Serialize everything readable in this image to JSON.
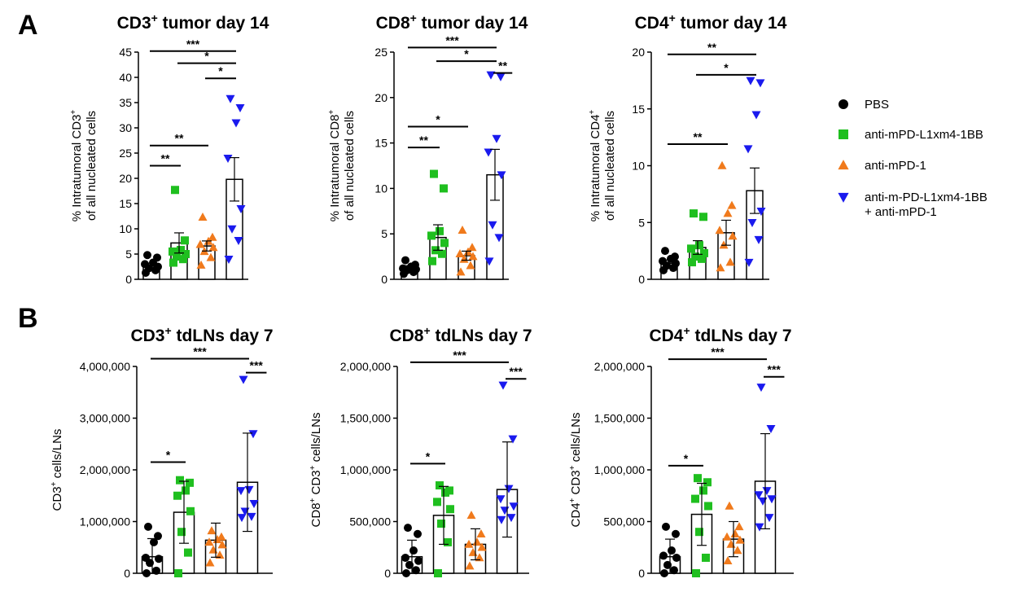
{
  "panel_letters": [
    "A",
    "B"
  ],
  "legend": [
    {
      "label_lines": [
        "PBS"
      ],
      "marker": "circle",
      "color": "#000000"
    },
    {
      "label_lines": [
        "anti-mPD-L1xm4-1BB"
      ],
      "marker": "square",
      "color": "#1fbf1f"
    },
    {
      "label_lines": [
        "anti-mPD-1"
      ],
      "marker": "triangle-up",
      "color": "#f07a1c"
    },
    {
      "label_lines": [
        "anti-m-PD-L1xm4-1BB",
        "+ anti-mPD-1"
      ],
      "marker": "triangle-down",
      "color": "#1a1aee"
    }
  ],
  "chart_data": [
    {
      "type": "bar",
      "id": "a1",
      "title_pre": "CD3",
      "title_sup": "+",
      "title_post": " tumor day 14",
      "ylabel_lines": [
        {
          "pre": "% Intratumoral CD3",
          "sup": "+",
          "post": ""
        },
        {
          "pre": "of all nucleated cells",
          "sup": "",
          "post": ""
        }
      ],
      "ylim": [
        0,
        45
      ],
      "yticks": [
        0,
        5,
        10,
        15,
        20,
        25,
        30,
        35,
        40,
        45
      ],
      "ytick_labels": [
        "0",
        "5",
        "10",
        "15",
        "20",
        "25",
        "30",
        "35",
        "40",
        "45"
      ],
      "categories": [
        "PBS",
        "anti-mPD-L1xm4-1BB",
        "anti-mPD-1",
        "anti-m-PD-L1xm4-1BB + anti-mPD-1"
      ],
      "means": [
        2.6,
        7.2,
        6.6,
        19.8
      ],
      "errors": [
        0.6,
        2.0,
        1.0,
        4.3
      ],
      "points": [
        [
          1.3,
          1.8,
          2.2,
          2.5,
          3.0,
          3.3,
          4.3,
          4.8
        ],
        [
          3.3,
          4.0,
          4.5,
          5.0,
          5.5,
          5.8,
          7.7,
          17.7
        ],
        [
          2.8,
          4.3,
          5.5,
          6.3,
          6.9,
          7.5,
          8.3,
          12.3
        ],
        [
          4.0,
          7.7,
          10.0,
          14.0,
          24.0,
          31.0,
          34.0,
          35.8
        ]
      ],
      "significance": [
        {
          "from": 0,
          "to": 1,
          "label": "**",
          "y": 22.5
        },
        {
          "from": 0,
          "to": 2,
          "label": "**",
          "y": 26.5
        },
        {
          "from": 2,
          "to": 3,
          "label": "*",
          "y": 39.8
        },
        {
          "from": 1,
          "to": 3,
          "label": "*",
          "y": 42.8
        },
        {
          "from": 0,
          "to": 3,
          "label": "***",
          "y": 45.2
        }
      ]
    },
    {
      "type": "bar",
      "id": "a2",
      "title_pre": "CD8",
      "title_sup": "+",
      "title_post": " tumor day 14",
      "ylabel_lines": [
        {
          "pre": "% Intratumoral CD8",
          "sup": "+",
          "post": ""
        },
        {
          "pre": "of all nucleated cells",
          "sup": "",
          "post": ""
        }
      ],
      "ylim": [
        0,
        25
      ],
      "yticks": [
        0,
        5,
        10,
        15,
        20,
        25
      ],
      "ytick_labels": [
        "0",
        "5",
        "10",
        "15",
        "20",
        "25"
      ],
      "categories": [
        "PBS",
        "anti-mPD-L1xm4-1BB",
        "anti-mPD-1",
        "anti-m-PD-L1xm4-1BB + anti-mPD-1"
      ],
      "means": [
        1.2,
        4.6,
        2.6,
        11.5
      ],
      "errors": [
        0.3,
        1.4,
        0.5,
        2.8
      ],
      "points": [
        [
          0.6,
          0.8,
          1.0,
          1.1,
          1.2,
          1.4,
          1.6,
          2.1
        ],
        [
          2.0,
          2.8,
          3.2,
          4.0,
          4.8,
          5.3,
          10.0,
          11.6
        ],
        [
          0.8,
          1.5,
          2.2,
          2.5,
          2.8,
          3.0,
          3.5,
          5.4
        ],
        [
          2.0,
          4.6,
          6.0,
          11.5,
          14.0,
          15.5,
          22.3,
          22.5
        ]
      ],
      "significance": [
        {
          "from": 0,
          "to": 1,
          "label": "**",
          "y": 14.5
        },
        {
          "from": 0,
          "to": 2,
          "label": "*",
          "y": 16.8
        },
        {
          "from": 3,
          "to": 3.55,
          "label": "**",
          "y": 22.7
        },
        {
          "from": 1,
          "to": 3,
          "label": "*",
          "y": 24.0
        },
        {
          "from": 0,
          "to": 3,
          "label": "***",
          "y": 25.5
        }
      ]
    },
    {
      "type": "bar",
      "id": "a3",
      "title_pre": "CD4",
      "title_sup": "+",
      "title_post": " tumor day 14",
      "ylabel_lines": [
        {
          "pre": "% Intratumoral CD4",
          "sup": "+",
          "post": ""
        },
        {
          "pre": "of all nucleated cells",
          "sup": "",
          "post": ""
        }
      ],
      "ylim": [
        0,
        20
      ],
      "yticks": [
        0,
        5,
        10,
        15,
        20
      ],
      "ytick_labels": [
        "0",
        "5",
        "10",
        "15",
        "20"
      ],
      "categories": [
        "PBS",
        "anti-mPD-L1xm4-1BB",
        "anti-mPD-1",
        "anti-m-PD-L1xm4-1BB + anti-mPD-1"
      ],
      "means": [
        1.4,
        2.8,
        4.1,
        7.8
      ],
      "errors": [
        0.3,
        0.6,
        1.1,
        2.0
      ],
      "points": [
        [
          0.8,
          1.0,
          1.2,
          1.4,
          1.6,
          1.8,
          2.0,
          2.5
        ],
        [
          1.5,
          1.8,
          2.0,
          2.3,
          2.7,
          3.0,
          5.5,
          5.8
        ],
        [
          1.0,
          1.5,
          3.0,
          3.8,
          4.3,
          5.8,
          6.5,
          10.0
        ],
        [
          1.5,
          3.5,
          5.0,
          6.0,
          11.5,
          14.5,
          17.3,
          17.5
        ]
      ],
      "significance": [
        {
          "from": 0,
          "to": 2,
          "label": "**",
          "y": 11.9
        },
        {
          "from": 1,
          "to": 3,
          "label": "*",
          "y": 18.0
        },
        {
          "from": 0,
          "to": 3,
          "label": "**",
          "y": 19.8
        }
      ]
    },
    {
      "type": "bar",
      "id": "b1",
      "title_pre": "CD3",
      "title_sup": "+",
      "title_post": " tdLNs day 7",
      "ylabel_lines": [
        {
          "pre": "CD3",
          "sup": "+",
          "post": " cells/LNs"
        }
      ],
      "ylim": [
        0,
        4000000
      ],
      "yticks": [
        0,
        1000000,
        2000000,
        3000000,
        4000000
      ],
      "ytick_labels": [
        "0",
        "1,000,000",
        "2,000,000",
        "3,000,000",
        "4,000,000"
      ],
      "categories": [
        "PBS",
        "anti-mPD-L1xm4-1BB",
        "anti-mPD-1",
        "anti-m-PD-L1xm4-1BB + anti-mPD-1"
      ],
      "means": [
        320000,
        1180000,
        640000,
        1760000
      ],
      "errors": [
        350000,
        600000,
        330000,
        950000
      ],
      "points": [
        [
          0,
          50000,
          200000,
          280000,
          300000,
          600000,
          720000,
          900000
        ],
        [
          0,
          400000,
          800000,
          1200000,
          1500000,
          1600000,
          1750000,
          1800000
        ],
        [
          200000,
          350000,
          450000,
          550000,
          600000,
          650000,
          700000,
          820000
        ],
        [
          1080000,
          1100000,
          1200000,
          1350000,
          1600000,
          1620000,
          2700000,
          3750000
        ]
      ],
      "significance": [
        {
          "from": 0,
          "to": 1,
          "label": "*",
          "y": 2150000
        },
        {
          "from": 3,
          "to": 3.55,
          "label": "***",
          "y": 3880000
        },
        {
          "from": 0,
          "to": 3,
          "label": "***",
          "y": 4150000
        }
      ]
    },
    {
      "type": "bar",
      "id": "b2",
      "title_pre": "CD8",
      "title_sup": "+",
      "title_post": " tdLNs day 7",
      "ylabel_lines": [
        {
          "pre": "CD8",
          "sup": "+",
          "post": " CD3",
          "sup2": "+",
          "post2": " cells/LNs"
        }
      ],
      "ylim": [
        0,
        2000000
      ],
      "yticks": [
        0,
        500000,
        1000000,
        1500000,
        2000000
      ],
      "ytick_labels": [
        "0",
        "500,000",
        "1,000,000",
        "1,500,000",
        "2,000,000"
      ],
      "categories": [
        "PBS",
        "anti-mPD-L1xm4-1BB",
        "anti-mPD-1",
        "anti-m-PD-L1xm4-1BB + anti-mPD-1"
      ],
      "means": [
        160000,
        560000,
        280000,
        810000
      ],
      "errors": [
        160000,
        280000,
        150000,
        460000
      ],
      "points": [
        [
          0,
          30000,
          80000,
          120000,
          150000,
          220000,
          380000,
          440000
        ],
        [
          0,
          300000,
          480000,
          620000,
          690000,
          780000,
          800000,
          850000
        ],
        [
          70000,
          150000,
          200000,
          250000,
          280000,
          300000,
          380000,
          560000
        ],
        [
          520000,
          540000,
          610000,
          650000,
          720000,
          820000,
          1300000,
          1820000
        ]
      ],
      "significance": [
        {
          "from": 0,
          "to": 1,
          "label": "*",
          "y": 1060000
        },
        {
          "from": 3,
          "to": 3.55,
          "label": "***",
          "y": 1880000
        },
        {
          "from": 0,
          "to": 3,
          "label": "***",
          "y": 2040000
        }
      ]
    },
    {
      "type": "bar",
      "id": "b3",
      "title_pre": "CD4",
      "title_sup": "+",
      "title_post": " tdLNs day 7",
      "ylabel_lines": [
        {
          "pre": "CD4",
          "sup": "+",
          "post": " CD3",
          "sup2": "+",
          "post2": " cells/LNs"
        }
      ],
      "ylim": [
        0,
        2000000
      ],
      "yticks": [
        0,
        500000,
        1000000,
        1500000,
        2000000
      ],
      "ytick_labels": [
        "0",
        "500,000",
        "1,000,000",
        "1,500,000",
        "2,000,000"
      ],
      "categories": [
        "PBS",
        "anti-mPD-L1xm4-1BB",
        "anti-mPD-1",
        "anti-m-PD-L1xm4-1BB + anti-mPD-1"
      ],
      "means": [
        160000,
        570000,
        330000,
        890000
      ],
      "errors": [
        170000,
        300000,
        170000,
        460000
      ],
      "points": [
        [
          0,
          30000,
          80000,
          150000,
          170000,
          220000,
          380000,
          450000
        ],
        [
          0,
          150000,
          400000,
          650000,
          720000,
          800000,
          880000,
          920000
        ],
        [
          120000,
          220000,
          280000,
          320000,
          350000,
          380000,
          450000,
          650000
        ],
        [
          450000,
          540000,
          700000,
          720000,
          760000,
          800000,
          1400000,
          1800000
        ]
      ],
      "significance": [
        {
          "from": 0,
          "to": 1,
          "label": "*",
          "y": 1040000
        },
        {
          "from": 3,
          "to": 3.55,
          "label": "***",
          "y": 1900000
        },
        {
          "from": 0,
          "to": 3,
          "label": "***",
          "y": 2070000
        }
      ]
    }
  ]
}
